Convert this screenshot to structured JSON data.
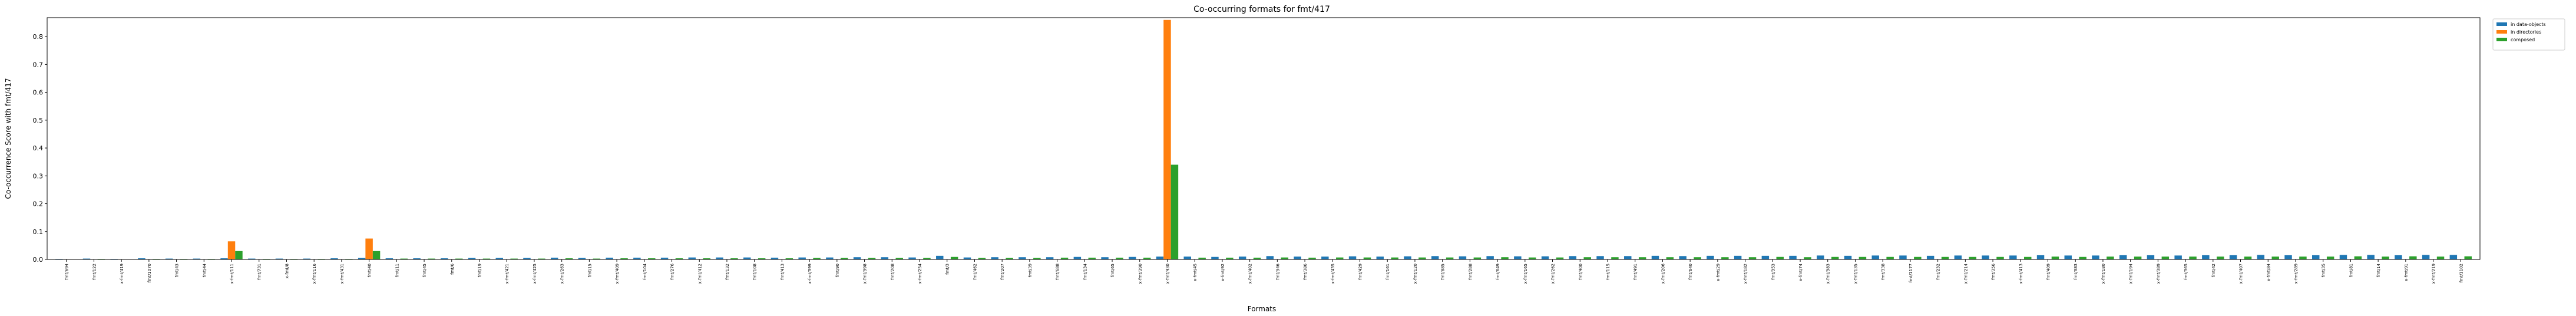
{
  "chart_data": {
    "type": "bar",
    "title": "Co-occurring formats for fmt/417",
    "x_label": "Formats",
    "y_label": "Co-occurrence Score with fmt/417",
    "categories": [
      "fmt/694",
      "fmt/122",
      "x-fmt/419",
      "fmt/1070",
      "fmt/43",
      "fmt/44",
      "x-fmt/111",
      "fmt/731",
      "x-fmt/8",
      "x-fmt/116",
      "x-fmt/431",
      "fmt/40",
      "fmt/11",
      "fmt/45",
      "fmt/6",
      "fmt/19",
      "x-fmt/421",
      "x-fmt/425",
      "x-fmt/263",
      "fmt/15",
      "x-fmt/409",
      "fmt/104",
      "fmt/276",
      "x-fmt/412",
      "fmt/132",
      "fmt/108",
      "fmt/413",
      "x-fmt/399",
      "fmt/90",
      "x-fmt/398",
      "fmt/208",
      "x-fmt/254",
      "fmt/3",
      "fmt/462",
      "fmt/207",
      "fmt/39",
      "fmt/688",
      "fmt/134",
      "fmt/65",
      "x-fmt/390",
      "x-fmt/430",
      "x-fmt/45",
      "x-fmt/92",
      "x-fmt/402",
      "fmt/346",
      "fmt/386",
      "x-fmt/435",
      "fmt/429",
      "fmt/161",
      "x-fmt/120",
      "fmt/885",
      "fmt/288",
      "fmt/649",
      "x-fmt/165",
      "x-fmt/262",
      "fmt/400",
      "fmt/115",
      "fmt/491",
      "x-fmt/206",
      "fmt/640",
      "x-fmt/29",
      "x-fmt/182",
      "fmt/353",
      "x-fmt/74",
      "x-fmt/383",
      "x-fmt/135",
      "fmt/338",
      "fmt/1177",
      "fmt/232",
      "x-fmt/214",
      "fmt/356",
      "x-fmt/413",
      "fmt/409",
      "fmt/383",
      "x-fmt/180",
      "x-fmt/194",
      "x-fmt/389",
      "fmt/365",
      "fmt/42",
      "x-fmt/407",
      "x-fmt/84",
      "x-fmt/289",
      "fmt/35",
      "fmt/81",
      "fmt/14",
      "x-fmt/91",
      "x-fmt/219",
      "fmt/1102"
    ],
    "series": [
      {
        "name": "in data-objects",
        "color": "#1f77b4",
        "values": [
          0.002,
          0.003,
          0.002,
          0.004,
          0.003,
          0.003,
          0.004,
          0.003,
          0.003,
          0.003,
          0.004,
          0.005,
          0.004,
          0.004,
          0.004,
          0.005,
          0.005,
          0.005,
          0.006,
          0.005,
          0.006,
          0.006,
          0.006,
          0.007,
          0.007,
          0.007,
          0.006,
          0.007,
          0.007,
          0.008,
          0.008,
          0.007,
          0.013,
          0.007,
          0.008,
          0.008,
          0.008,
          0.009,
          0.008,
          0.009,
          0.01,
          0.01,
          0.009,
          0.01,
          0.012,
          0.01,
          0.01,
          0.011,
          0.01,
          0.011,
          0.012,
          0.011,
          0.012,
          0.011,
          0.011,
          0.012,
          0.012,
          0.012,
          0.013,
          0.012,
          0.013,
          0.013,
          0.013,
          0.013,
          0.014,
          0.013,
          0.014,
          0.014,
          0.013,
          0.014,
          0.014,
          0.014,
          0.015,
          0.014,
          0.014,
          0.015,
          0.015,
          0.014,
          0.015,
          0.015,
          0.016,
          0.015,
          0.015,
          0.016,
          0.016,
          0.015,
          0.016,
          0.016
        ]
      },
      {
        "name": "in directories",
        "color": "#ff7f0e",
        "values": [
          0,
          0,
          0,
          0,
          0,
          0,
          0.065,
          0,
          0,
          0,
          0,
          0.075,
          0,
          0,
          0,
          0,
          0,
          0,
          0,
          0,
          0,
          0,
          0,
          0,
          0,
          0,
          0,
          0,
          0,
          0,
          0,
          0,
          0,
          0,
          0,
          0,
          0,
          0,
          0,
          0,
          0.86,
          0,
          0,
          0,
          0,
          0,
          0,
          0,
          0,
          0,
          0,
          0,
          0,
          0,
          0,
          0,
          0,
          0,
          0,
          0,
          0,
          0,
          0,
          0,
          0,
          0,
          0,
          0,
          0,
          0,
          0,
          0,
          0,
          0,
          0,
          0,
          0,
          0,
          0,
          0,
          0,
          0,
          0,
          0,
          0,
          0,
          0,
          0
        ]
      },
      {
        "name": "composed",
        "color": "#2ca02c",
        "values": [
          0.001,
          0.002,
          0.001,
          0.002,
          0.002,
          0.002,
          0.03,
          0.002,
          0.002,
          0.002,
          0.002,
          0.03,
          0.003,
          0.003,
          0.003,
          0.003,
          0.003,
          0.003,
          0.004,
          0.003,
          0.004,
          0.004,
          0.004,
          0.004,
          0.004,
          0.004,
          0.004,
          0.005,
          0.005,
          0.005,
          0.005,
          0.005,
          0.009,
          0.005,
          0.005,
          0.005,
          0.006,
          0.006,
          0.006,
          0.006,
          0.34,
          0.006,
          0.006,
          0.006,
          0.007,
          0.006,
          0.007,
          0.007,
          0.007,
          0.007,
          0.007,
          0.007,
          0.008,
          0.007,
          0.007,
          0.008,
          0.008,
          0.008,
          0.008,
          0.008,
          0.008,
          0.008,
          0.009,
          0.008,
          0.009,
          0.009,
          0.009,
          0.009,
          0.009,
          0.009,
          0.009,
          0.009,
          0.01,
          0.009,
          0.01,
          0.01,
          0.01,
          0.01,
          0.01,
          0.01,
          0.01,
          0.01,
          0.01,
          0.011,
          0.01,
          0.011,
          0.01,
          0.011
        ]
      }
    ],
    "ylim": [
      0,
      0.868
    ],
    "yticks": [
      {
        "value": 0,
        "label": "0.0"
      },
      {
        "value": 0.1,
        "label": "0.1"
      },
      {
        "value": 0.2,
        "label": "0.2"
      },
      {
        "value": 0.3,
        "label": "0.3"
      },
      {
        "value": 0.4,
        "label": "0.4"
      },
      {
        "value": 0.5,
        "label": "0.5"
      },
      {
        "value": 0.6,
        "label": "0.6"
      },
      {
        "value": 0.7,
        "label": "0.7"
      },
      {
        "value": 0.8,
        "label": "0.8"
      }
    ],
    "legend": "outside upper right"
  }
}
